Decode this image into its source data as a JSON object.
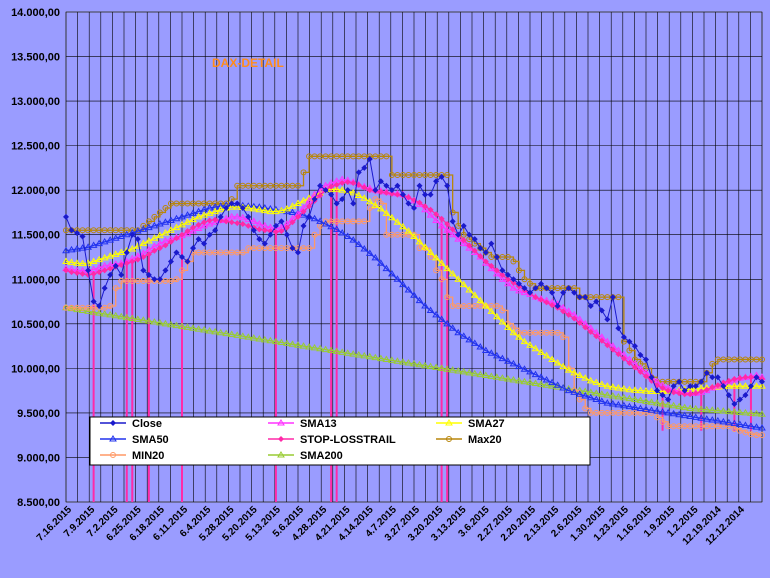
{
  "chart_data": {
    "type": "line",
    "title": "DAX-DETAIL",
    "ylim": [
      8500,
      14000
    ],
    "y_ticks": [
      "8.500,00",
      "9.000,00",
      "9.500,00",
      "10.000,00",
      "10.500,00",
      "11.000,00",
      "11.500,00",
      "12.000,00",
      "12.500,00",
      "13.000,00",
      "13.500,00",
      "14.000,00"
    ],
    "x_ticks": [
      "7.16.2015",
      "7.9.2015",
      "7.2.2015",
      "6.25.2015",
      "6.18.2015",
      "6.11.2015",
      "6.4.2015",
      "5.28.2015",
      "5.20.2015",
      "5.13.2015",
      "5.6.2015",
      "4.28.2015",
      "4.21.2015",
      "4.14.2015",
      "4.7.2015",
      "3.27.2015",
      "3.20.2015",
      "3.13.2015",
      "3.6.2015",
      "2.27.2015",
      "2.20.2015",
      "2.13.2015",
      "2.6.2015",
      "1.30.2015",
      "1.23.2015",
      "1.16.2015",
      "1.9.2015",
      "1.2.2015",
      "12.19.2014",
      "12.12.2014"
    ],
    "grid": true,
    "legend_position": "bottom-left",
    "colors": {
      "Close": "#1a1acc",
      "SMA13": "#ff33ff",
      "SMA27": "#ffff00",
      "SMA50": "#2233ee",
      "STOP-LOSSTRAIL": "#ff2aa8",
      "Max20": "#b8860b",
      "MIN20": "#ff9966",
      "SMA200": "#99cc33"
    },
    "legend_order": [
      "Close",
      "SMA13",
      "SMA27",
      "SMA50",
      "STOP-LOSSTRAIL",
      "Max20",
      "MIN20",
      "SMA200"
    ],
    "series": [
      {
        "name": "Close",
        "values": [
          11700,
          11550,
          11520,
          11480,
          11100,
          10750,
          10700,
          10900,
          11050,
          11150,
          11050,
          11300,
          11500,
          11450,
          11100,
          11050,
          11000,
          11000,
          11100,
          11200,
          11300,
          11250,
          11200,
          11350,
          11450,
          11400,
          11500,
          11550,
          11700,
          11800,
          11850,
          11850,
          11800,
          11700,
          11550,
          11450,
          11400,
          11500,
          11600,
          11650,
          11500,
          11350,
          11300,
          11600,
          11700,
          11900,
          12050,
          12000,
          11950,
          11850,
          11900,
          12000,
          11850,
          12200,
          12250,
          12350,
          12000,
          12100,
          12050,
          12000,
          12050,
          11950,
          11850,
          11800,
          12050,
          11950,
          11950,
          12100,
          12150,
          12050,
          11650,
          11500,
          11600,
          11500,
          11450,
          11350,
          11300,
          11400,
          11250,
          11100,
          11050,
          11000,
          10950,
          10900,
          10850,
          10900,
          10950,
          10900,
          10850,
          10700,
          10850,
          10900,
          10850,
          10800,
          10800,
          10700,
          10750,
          10650,
          10550,
          10800,
          10450,
          10350,
          10300,
          10250,
          10150,
          10100,
          9900,
          9750,
          9700,
          9650,
          9800,
          9850,
          9750,
          9800,
          9800,
          9850,
          9950,
          9900,
          9900,
          9800,
          9700,
          9600,
          9650,
          9700,
          9800,
          9900,
          9850
        ]
      },
      {
        "name": "SMA13",
        "values": [
          11120,
          11110,
          11100,
          11095,
          11100,
          11110,
          11130,
          11150,
          11160,
          11170,
          11180,
          11200,
          11230,
          11260,
          11290,
          11330,
          11370,
          11400,
          11430,
          11450,
          11470,
          11490,
          11510,
          11540,
          11570,
          11600,
          11620,
          11640,
          11660,
          11680,
          11700,
          11700,
          11690,
          11670,
          11650,
          11620,
          11600,
          11580,
          11570,
          11580,
          11620,
          11680,
          11730,
          11800,
          11880,
          11950,
          12000,
          12050,
          12080,
          12100,
          12120,
          12110,
          12090,
          12060,
          12040,
          12020,
          12000,
          11990,
          11980,
          11970,
          11960,
          11950,
          11920,
          11880,
          11840,
          11780,
          11720,
          11660,
          11600,
          11550,
          11500,
          11450,
          11400,
          11350,
          11300,
          11250,
          11180,
          11120,
          11060,
          11000,
          10950,
          10900,
          10870,
          10850,
          10830,
          10800,
          10780,
          10760,
          10740,
          10720,
          10680,
          10640,
          10600,
          10550,
          10500,
          10450,
          10400,
          10350,
          10300,
          10250,
          10200,
          10150,
          10100,
          10050,
          10000,
          9950,
          9900,
          9850,
          9810,
          9780,
          9760,
          9740,
          9730,
          9720,
          9720,
          9730,
          9750,
          9780,
          9800,
          9830,
          9850,
          9870,
          9890,
          9900,
          9910,
          9920,
          9900
        ]
      },
      {
        "name": "SMA27",
        "values": [
          11200,
          11190,
          11180,
          11175,
          11180,
          11200,
          11220,
          11240,
          11260,
          11280,
          11300,
          11320,
          11340,
          11370,
          11400,
          11430,
          11460,
          11490,
          11520,
          11550,
          11580,
          11610,
          11640,
          11670,
          11700,
          11720,
          11740,
          11760,
          11780,
          11800,
          11810,
          11810,
          11805,
          11800,
          11790,
          11780,
          11770,
          11760,
          11760,
          11770,
          11790,
          11820,
          11850,
          11880,
          11910,
          11940,
          11970,
          12000,
          12010,
          12010,
          12000,
          11990,
          11970,
          11940,
          11910,
          11870,
          11830,
          11790,
          11740,
          11690,
          11640,
          11590,
          11540,
          11480,
          11420,
          11360,
          11300,
          11240,
          11180,
          11120,
          11060,
          11000,
          10940,
          10880,
          10820,
          10760,
          10700,
          10640,
          10580,
          10520,
          10460,
          10400,
          10350,
          10300,
          10260,
          10220,
          10180,
          10140,
          10100,
          10060,
          10020,
          9980,
          9950,
          9920,
          9890,
          9860,
          9840,
          9820,
          9800,
          9790,
          9780,
          9770,
          9760,
          9755,
          9750,
          9745,
          9740,
          9740,
          9740,
          9745,
          9750,
          9755,
          9760,
          9765,
          9770,
          9775,
          9780,
          9785,
          9790,
          9795,
          9800,
          9800,
          9800,
          9800,
          9800,
          9800,
          9800
        ]
      },
      {
        "name": "SMA50",
        "values": [
          11320,
          11330,
          11340,
          11350,
          11360,
          11380,
          11400,
          11420,
          11440,
          11460,
          11480,
          11500,
          11520,
          11540,
          11560,
          11580,
          11600,
          11620,
          11640,
          11660,
          11680,
          11700,
          11720,
          11740,
          11760,
          11780,
          11800,
          11810,
          11820,
          11830,
          11830,
          11830,
          11825,
          11820,
          11815,
          11810,
          11800,
          11790,
          11780,
          11770,
          11760,
          11750,
          11740,
          11720,
          11700,
          11680,
          11650,
          11620,
          11590,
          11560,
          11520,
          11480,
          11440,
          11390,
          11340,
          11290,
          11240,
          11180,
          11120,
          11060,
          11000,
          10940,
          10880,
          10820,
          10760,
          10700,
          10650,
          10600,
          10550,
          10500,
          10450,
          10400,
          10360,
          10320,
          10280,
          10240,
          10200,
          10170,
          10140,
          10110,
          10080,
          10050,
          10020,
          9990,
          9960,
          9930,
          9900,
          9870,
          9840,
          9810,
          9780,
          9750,
          9730,
          9710,
          9690,
          9670,
          9650,
          9630,
          9610,
          9600,
          9590,
          9580,
          9570,
          9560,
          9550,
          9540,
          9530,
          9520,
          9510,
          9500,
          9490,
          9480,
          9470,
          9460,
          9450,
          9440,
          9430,
          9420,
          9410,
          9400,
          9390,
          9380,
          9370,
          9360,
          9350,
          9340,
          9330
        ]
      },
      {
        "name": "STOP-LOSSTRAIL",
        "values": [
          11100,
          11080,
          11070,
          11060,
          11050,
          11060,
          11080,
          11100,
          11120,
          11140,
          11160,
          11180,
          11200,
          11220,
          11250,
          11280,
          11320,
          11350,
          11380,
          11420,
          11460,
          11500,
          11540,
          11580,
          11610,
          11640,
          11660,
          11670,
          11660,
          11650,
          11640,
          11630,
          11620,
          11600,
          11580,
          11560,
          11550,
          11540,
          11530,
          11540,
          11580,
          11640,
          11700,
          11760,
          11820,
          11880,
          11940,
          12000,
          12040,
          12060,
          12080,
          12090,
          12080,
          12060,
          12030,
          12000,
          11990,
          11980,
          11970,
          11960,
          11950,
          11940,
          11920,
          11890,
          11860,
          11820,
          11780,
          11730,
          11680,
          11620,
          11560,
          11500,
          11440,
          11380,
          11320,
          11260,
          11200,
          11150,
          11100,
          11050,
          11000,
          10960,
          10920,
          10880,
          10840,
          10800,
          10770,
          10740,
          10710,
          10680,
          10640,
          10600,
          10560,
          10510,
          10460,
          10410,
          10360,
          10310,
          10260,
          10210,
          10160,
          10110,
          10060,
          10010,
          9960,
          9910,
          9860,
          9810,
          9780,
          9750,
          9730,
          9720,
          9710,
          9710,
          9720,
          9740,
          9760,
          9790,
          9810,
          9840,
          9860,
          9880,
          9890,
          9900,
          9900,
          9900,
          9880
        ]
      },
      {
        "name": "Max20",
        "values": [
          11550,
          11550,
          11550,
          11550,
          11550,
          11550,
          11550,
          11550,
          11550,
          11550,
          11550,
          11550,
          11550,
          11550,
          11600,
          11650,
          11700,
          11750,
          11800,
          11850,
          11850,
          11850,
          11850,
          11850,
          11850,
          11850,
          11850,
          11850,
          11850,
          11850,
          11900,
          12050,
          12050,
          12050,
          12050,
          12050,
          12050,
          12050,
          12050,
          12050,
          12050,
          12050,
          12050,
          12200,
          12380,
          12380,
          12380,
          12380,
          12380,
          12380,
          12380,
          12380,
          12380,
          12380,
          12380,
          12380,
          12380,
          12380,
          12380,
          12170,
          12170,
          12170,
          12170,
          12170,
          12170,
          12170,
          12170,
          12170,
          12170,
          12170,
          11750,
          11600,
          11500,
          11450,
          11400,
          11350,
          11300,
          11250,
          11250,
          11250,
          11250,
          11200,
          11100,
          11000,
          10950,
          10900,
          10900,
          10900,
          10900,
          10900,
          10900,
          10900,
          10900,
          10800,
          10800,
          10800,
          10800,
          10800,
          10800,
          10800,
          10800,
          10300,
          10200,
          10100,
          10050,
          10000,
          9900,
          9850,
          9850,
          9850,
          9850,
          9850,
          9850,
          9850,
          9850,
          9850,
          9950,
          10050,
          10100,
          10100,
          10100,
          10100,
          10100,
          10100,
          10100,
          10100,
          10100
        ]
      },
      {
        "name": "MIN20",
        "values": [
          10680,
          10680,
          10680,
          10680,
          10680,
          10680,
          10680,
          10680,
          10700,
          10900,
          10980,
          10980,
          10980,
          10980,
          10980,
          10980,
          10980,
          10980,
          10980,
          10980,
          11000,
          11100,
          11200,
          11300,
          11300,
          11300,
          11300,
          11300,
          11300,
          11300,
          11300,
          11300,
          11300,
          11350,
          11350,
          11350,
          11350,
          11350,
          11350,
          11350,
          11350,
          11350,
          11350,
          11350,
          11350,
          11500,
          11600,
          11650,
          11650,
          11650,
          11650,
          11650,
          11650,
          11650,
          11650,
          11800,
          11900,
          11850,
          11500,
          11500,
          11500,
          11500,
          11500,
          11500,
          11350,
          11350,
          11250,
          11100,
          11000,
          10800,
          10700,
          10700,
          10700,
          10700,
          10700,
          10700,
          10700,
          10700,
          10700,
          10650,
          10500,
          10450,
          10400,
          10400,
          10400,
          10400,
          10400,
          10400,
          10400,
          10400,
          10350,
          10000,
          9750,
          9650,
          9550,
          9500,
          9500,
          9500,
          9500,
          9500,
          9500,
          9500,
          9500,
          9500,
          9500,
          9500,
          9500,
          9450,
          9400,
          9350,
          9350,
          9350,
          9350,
          9350,
          9350,
          9350,
          9350,
          9350,
          9350,
          9350,
          9350,
          9320,
          9300,
          9280,
          9260,
          9250,
          9250
        ]
      },
      {
        "name": "SMA200",
        "values": [
          10680,
          10670,
          10660,
          10650,
          10640,
          10630,
          10620,
          10610,
          10600,
          10590,
          10580,
          10570,
          10560,
          10550,
          10540,
          10530,
          10520,
          10510,
          10500,
          10490,
          10480,
          10470,
          10460,
          10450,
          10440,
          10430,
          10420,
          10410,
          10400,
          10390,
          10380,
          10370,
          10360,
          10350,
          10340,
          10330,
          10320,
          10310,
          10300,
          10290,
          10280,
          10270,
          10260,
          10250,
          10240,
          10230,
          10220,
          10210,
          10200,
          10190,
          10180,
          10170,
          10160,
          10150,
          10140,
          10130,
          10120,
          10110,
          10100,
          10090,
          10080,
          10070,
          10060,
          10050,
          10040,
          10030,
          10020,
          10010,
          10000,
          9990,
          9980,
          9970,
          9960,
          9950,
          9940,
          9930,
          9920,
          9910,
          9900,
          9890,
          9880,
          9870,
          9860,
          9850,
          9840,
          9830,
          9820,
          9810,
          9800,
          9790,
          9780,
          9770,
          9760,
          9750,
          9740,
          9730,
          9720,
          9710,
          9700,
          9690,
          9680,
          9670,
          9660,
          9650,
          9640,
          9630,
          9620,
          9610,
          9600,
          9590,
          9580,
          9570,
          9560,
          9550,
          9545,
          9540,
          9535,
          9530,
          9525,
          9520,
          9515,
          9510,
          9505,
          9500,
          9495,
          9490,
          9485
        ]
      }
    ],
    "drops": [
      [
        5,
        8500
      ],
      [
        11,
        8500
      ],
      [
        12,
        8500
      ],
      [
        15,
        8500
      ],
      [
        21,
        8500
      ],
      [
        38,
        8500
      ],
      [
        48,
        8500
      ],
      [
        49,
        8500
      ],
      [
        68,
        8500
      ],
      [
        69,
        8500
      ],
      [
        108,
        9300
      ],
      [
        115,
        9300
      ],
      [
        121,
        9300
      ],
      [
        124,
        9300
      ]
    ]
  }
}
